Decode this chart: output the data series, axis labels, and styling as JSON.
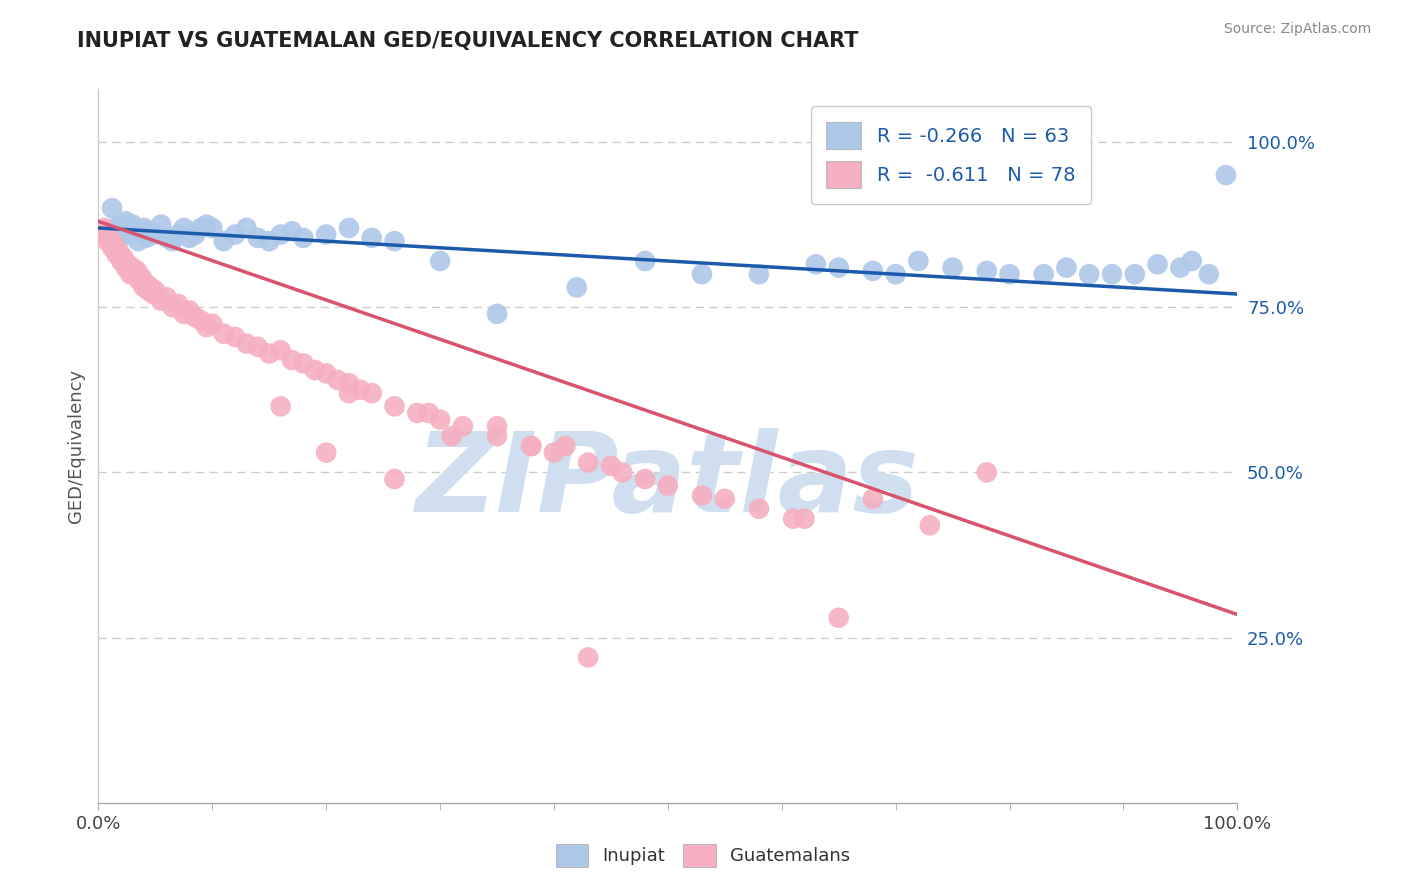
{
  "title": "INUPIAT VS GUATEMALAN GED/EQUIVALENCY CORRELATION CHART",
  "source_text": "Source: ZipAtlas.com",
  "ylabel": "GED/Equivalency",
  "xlim": [
    0.0,
    1.0
  ],
  "ylim": [
    0.0,
    1.08
  ],
  "yticks": [
    0.25,
    0.5,
    0.75,
    1.0
  ],
  "ytick_labels": [
    "25.0%",
    "50.0%",
    "75.0%",
    "100.0%"
  ],
  "inupiat_R": -0.266,
  "inupiat_N": 63,
  "guatemalan_R": -0.611,
  "guatemalan_N": 78,
  "inupiat_color": "#adc8e8",
  "guatemalan_color": "#f5afc0",
  "inupiat_line_color": "#1c5bab",
  "guatemalan_line_color": "#d8536e",
  "legend_color": "#1c5bab",
  "watermark_color": "#d0dff0",
  "background_color": "#ffffff",
  "grid_color": "#cccccc",
  "title_color": "#222222",
  "inupiat_x": [
    0.008,
    0.012,
    0.015,
    0.018,
    0.02,
    0.022,
    0.024,
    0.026,
    0.028,
    0.03,
    0.032,
    0.035,
    0.038,
    0.04,
    0.042,
    0.045,
    0.05,
    0.055,
    0.06,
    0.065,
    0.07,
    0.075,
    0.08,
    0.085,
    0.09,
    0.095,
    0.1,
    0.11,
    0.12,
    0.13,
    0.14,
    0.15,
    0.16,
    0.17,
    0.18,
    0.2,
    0.22,
    0.24,
    0.26,
    0.3,
    0.35,
    0.42,
    0.48,
    0.53,
    0.58,
    0.63,
    0.65,
    0.68,
    0.7,
    0.72,
    0.75,
    0.78,
    0.8,
    0.83,
    0.85,
    0.87,
    0.89,
    0.91,
    0.93,
    0.95,
    0.96,
    0.975,
    0.99
  ],
  "inupiat_y": [
    0.86,
    0.9,
    0.87,
    0.855,
    0.875,
    0.865,
    0.88,
    0.87,
    0.86,
    0.875,
    0.865,
    0.85,
    0.86,
    0.87,
    0.855,
    0.865,
    0.86,
    0.875,
    0.855,
    0.85,
    0.86,
    0.87,
    0.855,
    0.86,
    0.87,
    0.875,
    0.87,
    0.85,
    0.86,
    0.87,
    0.855,
    0.85,
    0.86,
    0.865,
    0.855,
    0.86,
    0.87,
    0.855,
    0.85,
    0.82,
    0.74,
    0.78,
    0.82,
    0.8,
    0.8,
    0.815,
    0.81,
    0.805,
    0.8,
    0.82,
    0.81,
    0.805,
    0.8,
    0.8,
    0.81,
    0.8,
    0.8,
    0.8,
    0.815,
    0.81,
    0.82,
    0.8,
    0.95
  ],
  "guatemalan_x": [
    0.005,
    0.008,
    0.01,
    0.012,
    0.014,
    0.016,
    0.018,
    0.02,
    0.022,
    0.024,
    0.026,
    0.028,
    0.03,
    0.032,
    0.034,
    0.036,
    0.038,
    0.04,
    0.042,
    0.044,
    0.046,
    0.048,
    0.05,
    0.055,
    0.06,
    0.065,
    0.07,
    0.075,
    0.08,
    0.085,
    0.09,
    0.095,
    0.1,
    0.11,
    0.12,
    0.13,
    0.14,
    0.15,
    0.16,
    0.17,
    0.18,
    0.19,
    0.2,
    0.21,
    0.22,
    0.23,
    0.24,
    0.26,
    0.28,
    0.3,
    0.32,
    0.35,
    0.38,
    0.4,
    0.43,
    0.46,
    0.5,
    0.53,
    0.58,
    0.62,
    0.68,
    0.73,
    0.78,
    0.45,
    0.38,
    0.31,
    0.26,
    0.2,
    0.16,
    0.22,
    0.29,
    0.35,
    0.41,
    0.48,
    0.55,
    0.61,
    0.65,
    0.43
  ],
  "guatemalan_y": [
    0.87,
    0.85,
    0.855,
    0.84,
    0.845,
    0.83,
    0.835,
    0.82,
    0.825,
    0.81,
    0.815,
    0.8,
    0.81,
    0.8,
    0.805,
    0.79,
    0.795,
    0.78,
    0.785,
    0.775,
    0.78,
    0.77,
    0.775,
    0.76,
    0.765,
    0.75,
    0.755,
    0.74,
    0.745,
    0.735,
    0.73,
    0.72,
    0.725,
    0.71,
    0.705,
    0.695,
    0.69,
    0.68,
    0.685,
    0.67,
    0.665,
    0.655,
    0.65,
    0.64,
    0.635,
    0.625,
    0.62,
    0.6,
    0.59,
    0.58,
    0.57,
    0.555,
    0.54,
    0.53,
    0.515,
    0.5,
    0.48,
    0.465,
    0.445,
    0.43,
    0.46,
    0.42,
    0.5,
    0.51,
    0.54,
    0.555,
    0.49,
    0.53,
    0.6,
    0.62,
    0.59,
    0.57,
    0.54,
    0.49,
    0.46,
    0.43,
    0.28,
    0.22
  ]
}
